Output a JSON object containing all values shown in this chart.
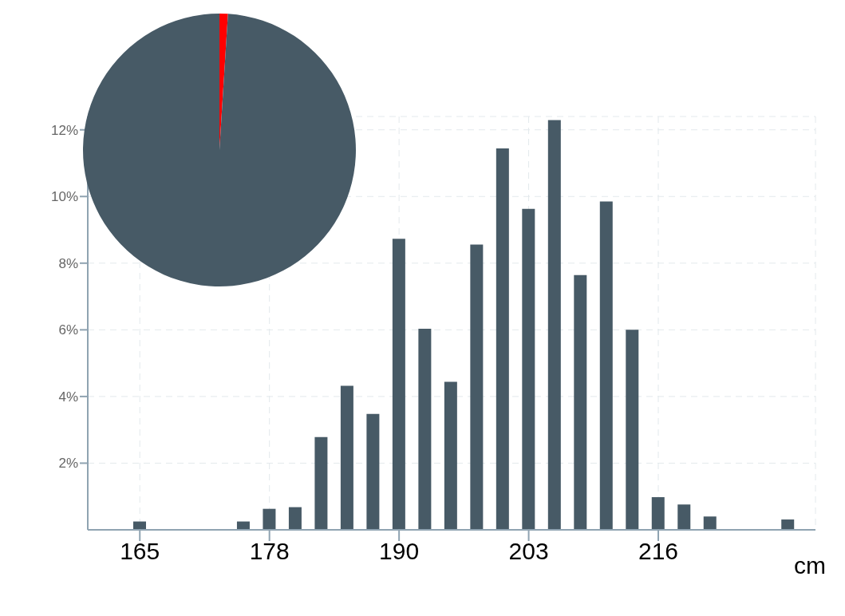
{
  "chart_data": [
    {
      "type": "pie",
      "categories": [
        null,
        null
      ],
      "values": [
        1,
        99
      ],
      "colors": [
        "#ff0000",
        "#475a66"
      ]
    },
    {
      "type": "bar",
      "xlabel": "cm",
      "x": [
        165.1,
        175.26,
        177.8,
        180.34,
        182.88,
        185.42,
        187.96,
        190.5,
        193.04,
        195.58,
        198.12,
        200.66,
        203.2,
        205.74,
        208.28,
        210.82,
        213.36,
        215.9,
        218.44,
        220.98,
        228.6
      ],
      "values": [
        0.25,
        0.25,
        0.63,
        0.68,
        2.78,
        4.32,
        3.48,
        8.73,
        6.03,
        4.44,
        8.56,
        11.44,
        9.63,
        12.29,
        7.64,
        9.85,
        6.0,
        0.98,
        0.76,
        0.4,
        0.31
      ],
      "color": "#475a66",
      "xlim": [
        160,
        231.3
      ],
      "xticks": [
        {
          "value": 165.1,
          "label": "165"
        },
        {
          "value": 177.8,
          "label": "178"
        },
        {
          "value": 190.5,
          "label": "190"
        },
        {
          "value": 203.2,
          "label": "203"
        },
        {
          "value": 215.9,
          "label": "216"
        }
      ],
      "ylim": [
        0,
        12.4
      ],
      "yticks": [
        {
          "value": 2,
          "label": "2%"
        },
        {
          "value": 4,
          "label": "4%"
        },
        {
          "value": 6,
          "label": "6%"
        },
        {
          "value": 8,
          "label": "8%"
        },
        {
          "value": 10,
          "label": "10%"
        },
        {
          "value": 12,
          "label": "12%"
        }
      ],
      "grid": true
    }
  ]
}
